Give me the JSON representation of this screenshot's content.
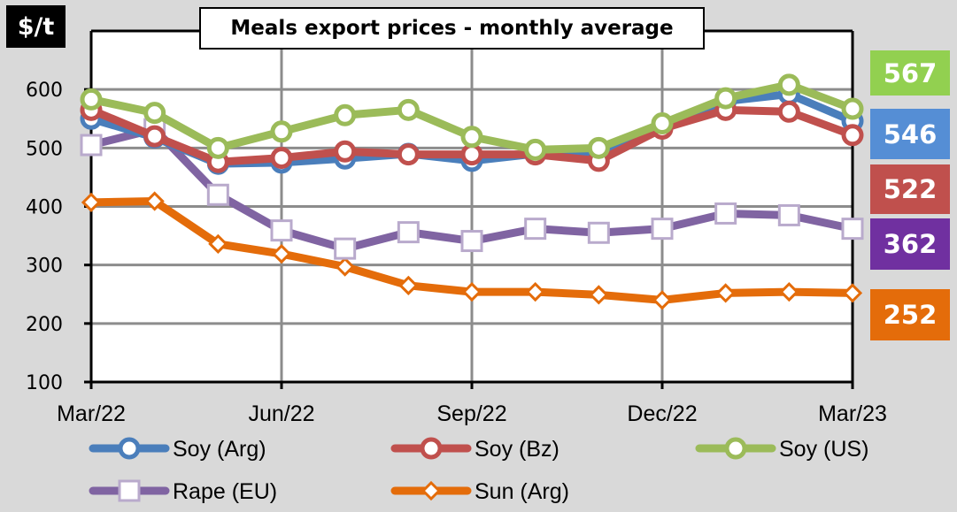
{
  "chart_data": {
    "type": "line",
    "title": "Meals export prices - monthly average",
    "ylabel": "$/t",
    "xlabel": "",
    "ylim": [
      100,
      700
    ],
    "yticks": [
      100,
      200,
      300,
      400,
      500,
      600
    ],
    "grid": true,
    "legend_position": "bottom",
    "x": [
      "Mar/22",
      "Apr/22",
      "May/22",
      "Jun/22",
      "Jul/22",
      "Aug/22",
      "Sep/22",
      "Oct/22",
      "Nov/22",
      "Dec/22",
      "Jan/23",
      "Feb/23",
      "Mar/23"
    ],
    "xtick_labels": [
      {
        "index": 0,
        "label": "Mar/22"
      },
      {
        "index": 3,
        "label": "Jun/22"
      },
      {
        "index": 6,
        "label": "Sep/22"
      },
      {
        "index": 9,
        "label": "Dec/22"
      },
      {
        "index": 12,
        "label": "Mar/23"
      }
    ],
    "series": [
      {
        "name": "Soy (Arg)",
        "color": "#4a7ebb",
        "marker": "circle",
        "values": [
          550,
          518,
          473,
          475,
          482,
          490,
          478,
          490,
          492,
          537,
          580,
          592,
          546
        ]
      },
      {
        "name": "Soy (Bz)",
        "color": "#c0504d",
        "marker": "circle",
        "values": [
          565,
          520,
          476,
          483,
          494,
          489,
          489,
          489,
          478,
          533,
          565,
          562,
          522
        ]
      },
      {
        "name": "Soy (US)",
        "color": "#9bbb59",
        "marker": "circle",
        "values": [
          583,
          560,
          500,
          528,
          556,
          565,
          519,
          497,
          500,
          542,
          585,
          608,
          567
        ]
      },
      {
        "name": "Rape (EU)",
        "color": "#8064a2",
        "marker": "square",
        "values": [
          505,
          532,
          420,
          359,
          328,
          356,
          341,
          362,
          355,
          362,
          388,
          385,
          362
        ]
      },
      {
        "name": "Sun (Arg)",
        "color": "#e46c0a",
        "marker": "diamond",
        "values": [
          407,
          409,
          336,
          319,
          297,
          265,
          254,
          254,
          249,
          240,
          252,
          254,
          252
        ]
      }
    ],
    "last_value_labels": [
      {
        "series": "Soy (US)",
        "value": "567",
        "color": "#92d050"
      },
      {
        "series": "Soy (Arg)",
        "value": "546",
        "color": "#558ed5"
      },
      {
        "series": "Soy (Bz)",
        "value": "522",
        "color": "#c0504d"
      },
      {
        "series": "Rape (EU)",
        "value": "362",
        "color": "#7030a0"
      },
      {
        "series": "Sun (Arg)",
        "value": "252",
        "color": "#e46c0a"
      }
    ]
  }
}
